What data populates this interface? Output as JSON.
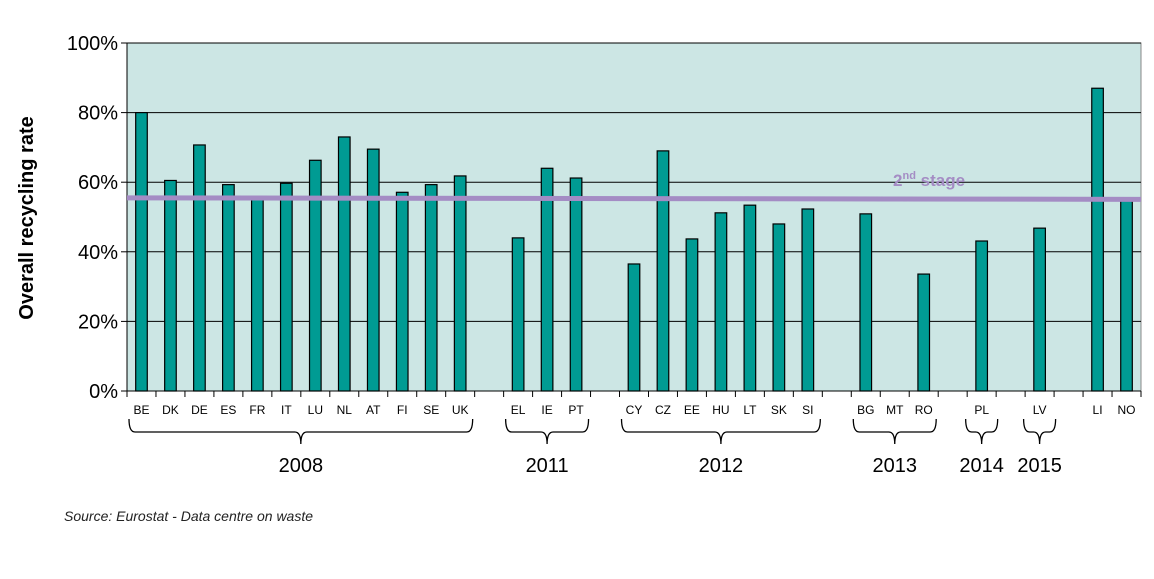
{
  "chart_data": {
    "type": "bar",
    "ylabel": "Overall recycling rate",
    "ylim": [
      0,
      100
    ],
    "yticks": [
      "0%",
      "20%",
      "40%",
      "60%",
      "80%",
      "100%"
    ],
    "grid": true,
    "background_color": "#cce6e4",
    "bar_color": "#009b93",
    "line_color": "#a48cc4",
    "categories": [
      "BE",
      "DK",
      "DE",
      "ES",
      "FR",
      "IT",
      "LU",
      "NL",
      "AT",
      "FI",
      "SE",
      "UK",
      "EL",
      "IE",
      "PT",
      "CY",
      "CZ",
      "EE",
      "HU",
      "LT",
      "SK",
      "SI",
      "BG",
      "MT",
      "RO",
      "PL",
      "LV",
      "LI",
      "NO"
    ],
    "values": [
      80,
      60.5,
      70.7,
      59.3,
      55.8,
      59.7,
      66.3,
      73,
      69.5,
      57.1,
      59.3,
      61.8,
      44,
      64,
      61.2,
      36.5,
      69,
      43.7,
      51.2,
      53.4,
      48,
      52.3,
      50.9,
      null,
      33.6,
      43.1,
      46.8,
      87,
      55
    ],
    "target_line": {
      "value": 55.5,
      "label_main": "2",
      "label_sup": "nd",
      "label_rest": " stage"
    },
    "groups": [
      {
        "label": "2008",
        "from": "BE",
        "to": "UK"
      },
      {
        "label": "2011",
        "from": "EL",
        "to": "PT"
      },
      {
        "label": "2012",
        "from": "CY",
        "to": "SI"
      },
      {
        "label": "2013",
        "from": "BG",
        "to": "RO"
      },
      {
        "label": "2014",
        "from": "PL",
        "to": "PL"
      },
      {
        "label": "2015",
        "from": "LV",
        "to": "LV"
      }
    ]
  },
  "source": "Source:  Eurostat - Data centre on waste"
}
